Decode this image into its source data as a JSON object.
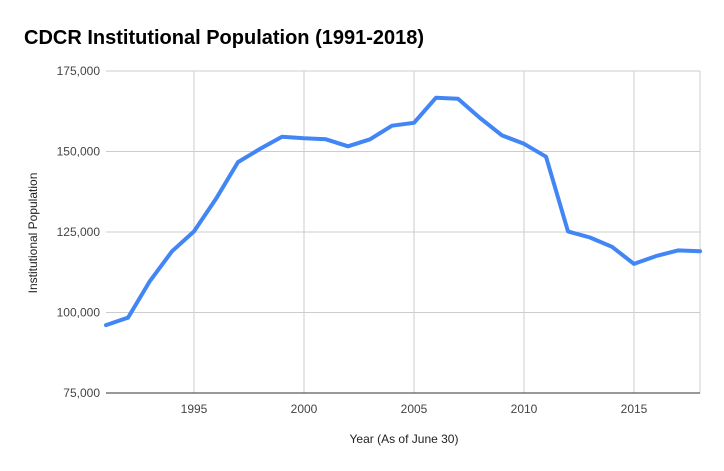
{
  "chart_data": {
    "type": "line",
    "title": "CDCR Institutional Population (1991-2018)",
    "xlabel": "Year (As of June 30)",
    "ylabel": "Institutional Population",
    "xlim": [
      1991,
      2018
    ],
    "ylim": [
      75000,
      175000
    ],
    "grid": true,
    "x_ticks": [
      1995,
      2000,
      2005,
      2010,
      2015
    ],
    "y_ticks": [
      75000,
      100000,
      125000,
      150000,
      175000
    ],
    "x_tick_labels": [
      "1995",
      "2000",
      "2005",
      "2010",
      "2015"
    ],
    "y_tick_labels": [
      "75,000",
      "100,000",
      "125,000",
      "150,000",
      "175,000"
    ],
    "series": [
      {
        "color": "#4285f4",
        "x": [
          1991,
          1992,
          1993,
          1994,
          1995,
          1996,
          1997,
          1998,
          1999,
          2000,
          2001,
          2002,
          2003,
          2004,
          2005,
          2006,
          2007,
          2008,
          2009,
          2010,
          2011,
          2012,
          2013,
          2014,
          2015,
          2016,
          2017,
          2018
        ],
        "y": [
          96100,
          98400,
          109800,
          119000,
          125200,
          135300,
          146700,
          150800,
          154600,
          154100,
          153800,
          151600,
          153800,
          158000,
          158900,
          166700,
          166400,
          160400,
          155000,
          152400,
          148400,
          125200,
          123300,
          120400,
          115100,
          117500,
          119300,
          119000
        ]
      }
    ],
    "colors": {
      "line": "#4285f4",
      "grid": "#cccccc",
      "axis": "#333333"
    }
  }
}
